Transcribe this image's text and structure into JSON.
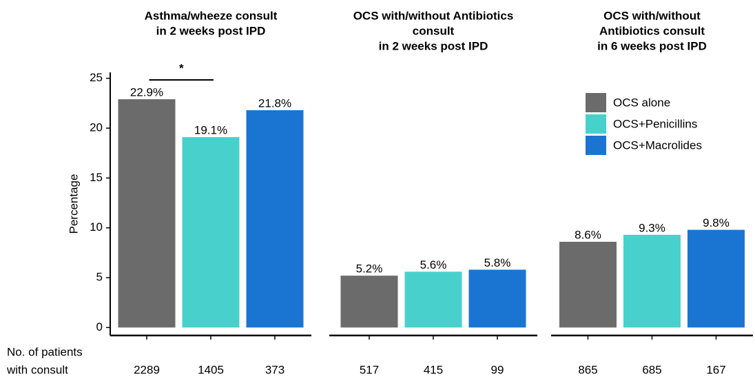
{
  "chart_data": [
    {
      "type": "bar",
      "title": [
        "Asthma/wheeze consult",
        "in 2 weeks post IPD"
      ],
      "values": [
        22.9,
        19.1,
        21.8
      ],
      "value_labels": [
        "22.9%",
        "19.1%",
        "21.8%"
      ],
      "counts": [
        2289,
        1405,
        373
      ],
      "annotation": "*"
    },
    {
      "type": "bar",
      "title": [
        "OCS with/without Antibiotics",
        "consult",
        "in 2 weeks post IPD"
      ],
      "values": [
        5.2,
        5.6,
        5.8
      ],
      "value_labels": [
        "5.2%",
        "5.6%",
        "5.8%"
      ],
      "counts": [
        517,
        415,
        99
      ]
    },
    {
      "type": "bar",
      "title": [
        "OCS with/without",
        "Antibiotics consult",
        "in 6 weeks post IPD"
      ],
      "values": [
        8.6,
        9.3,
        9.8
      ],
      "value_labels": [
        "8.6%",
        "9.3%",
        "9.8%"
      ],
      "counts": [
        865,
        685,
        167
      ]
    }
  ],
  "ylabel": "Percentage",
  "ylim": [
    -0.8,
    25.6
  ],
  "yticks": [
    0,
    5,
    10,
    15,
    20,
    25
  ],
  "legend": {
    "labels": [
      "OCS alone",
      "OCS+Penicillins",
      "OCS+Macrolides"
    ],
    "colors": [
      "#6b6b6b",
      "#48d1cc",
      "#1a75d2"
    ],
    "position": "upper right"
  },
  "count_label": [
    "No. of patients",
    "with consult"
  ]
}
